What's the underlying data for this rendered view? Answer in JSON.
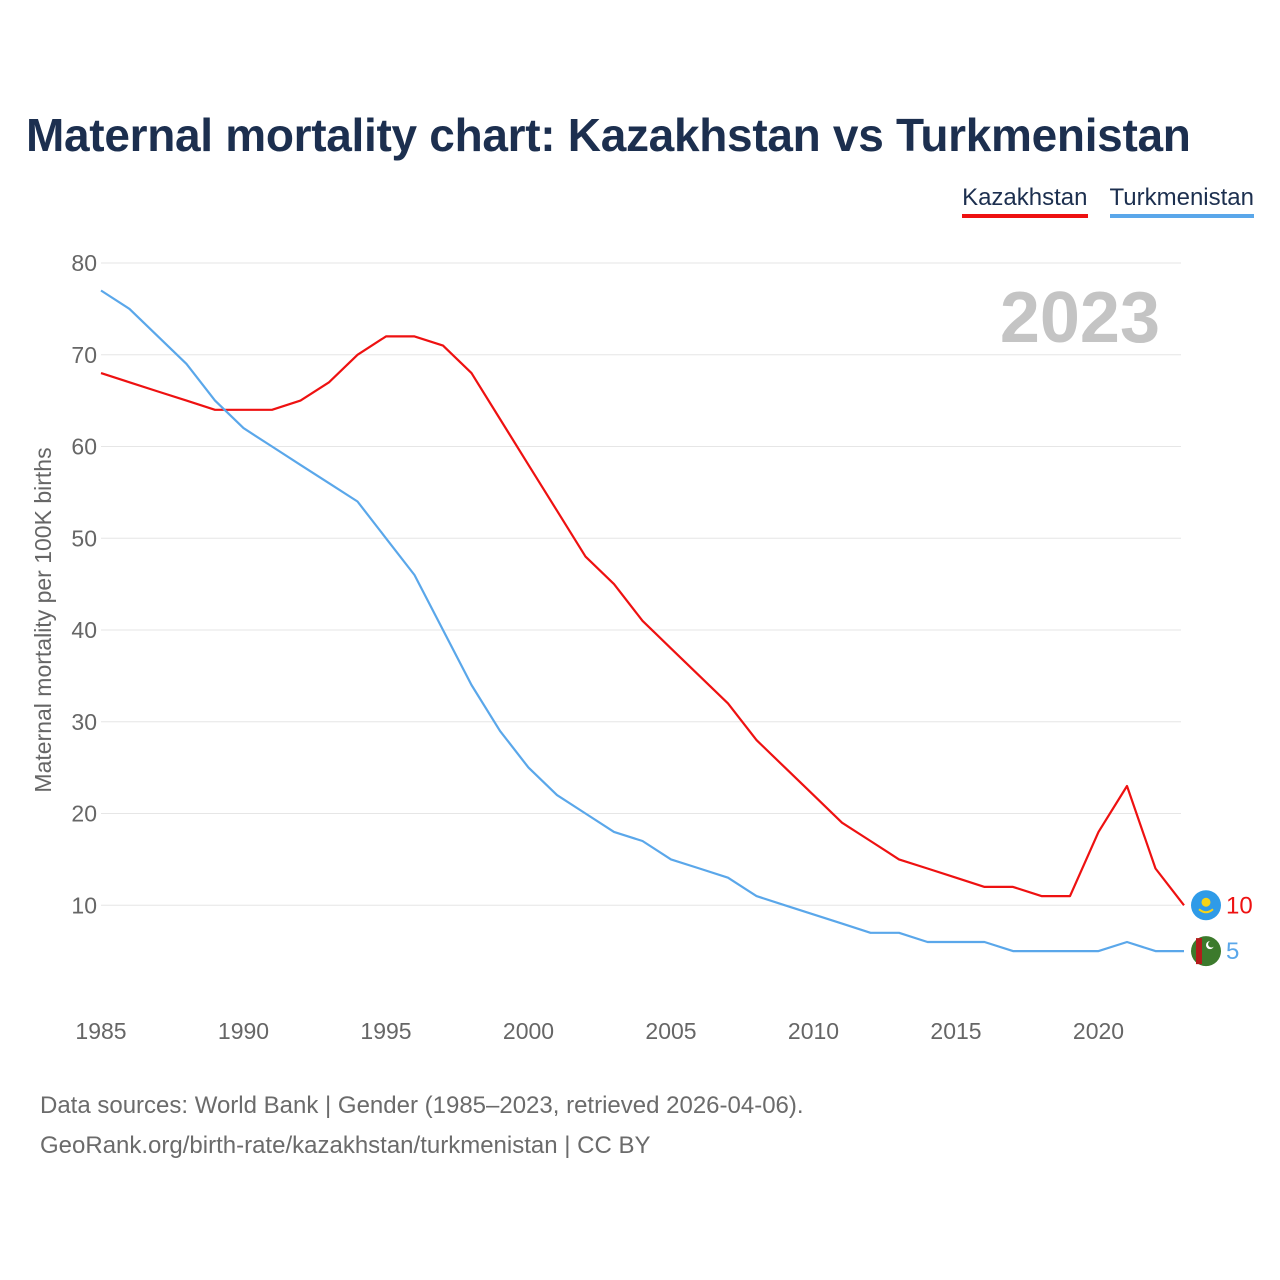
{
  "title": "Maternal mortality chart: Kazakhstan vs Turkmenistan",
  "year_label": "2023",
  "footer": {
    "line1": "Data sources: World Bank | Gender (1985–2023, retrieved 2026-04-06).",
    "line2": "GeoRank.org/birth-rate/kazakhstan/turkmenistan | CC BY"
  },
  "colors": {
    "kazakhstan": "#ee1111",
    "turkmenistan": "#5aa7ea",
    "title": "#1c2f4f"
  },
  "chart_data": {
    "type": "line",
    "title": "Maternal mortality chart: Kazakhstan vs Turkmenistan",
    "xlabel": "",
    "ylabel": "Maternal mortality per 100K births",
    "xlim": [
      1985,
      2023
    ],
    "ylim": [
      0,
      80
    ],
    "xticks": [
      1985,
      1990,
      1995,
      2000,
      2005,
      2010,
      2015,
      2020
    ],
    "yticks": [
      10,
      20,
      30,
      40,
      50,
      60,
      70,
      80
    ],
    "grid": true,
    "legend_position": "top-right",
    "x": [
      1985,
      1986,
      1987,
      1988,
      1989,
      1990,
      1991,
      1992,
      1993,
      1994,
      1995,
      1996,
      1997,
      1998,
      1999,
      2000,
      2001,
      2002,
      2003,
      2004,
      2005,
      2006,
      2007,
      2008,
      2009,
      2010,
      2011,
      2012,
      2013,
      2014,
      2015,
      2016,
      2017,
      2018,
      2019,
      2020,
      2021,
      2022,
      2023
    ],
    "series": [
      {
        "name": "Kazakhstan",
        "color": "#ee1111",
        "flag_icon": "kazakhstan-flag-icon",
        "end_label": "10",
        "values": [
          68,
          67,
          66,
          65,
          64,
          64,
          64,
          65,
          67,
          70,
          72,
          72,
          71,
          68,
          63,
          58,
          53,
          48,
          45,
          41,
          38,
          35,
          32,
          28,
          25,
          22,
          19,
          17,
          15,
          14,
          13,
          12,
          12,
          11,
          11,
          18,
          23,
          14,
          10
        ]
      },
      {
        "name": "Turkmenistan",
        "color": "#5aa7ea",
        "flag_icon": "turkmenistan-flag-icon",
        "end_label": "5",
        "values": [
          77,
          75,
          72,
          69,
          65,
          62,
          60,
          58,
          56,
          54,
          50,
          46,
          40,
          34,
          29,
          25,
          22,
          20,
          18,
          17,
          15,
          14,
          13,
          11,
          10,
          9,
          8,
          7,
          7,
          6,
          6,
          6,
          5,
          5,
          5,
          5,
          6,
          5,
          5
        ]
      }
    ]
  }
}
